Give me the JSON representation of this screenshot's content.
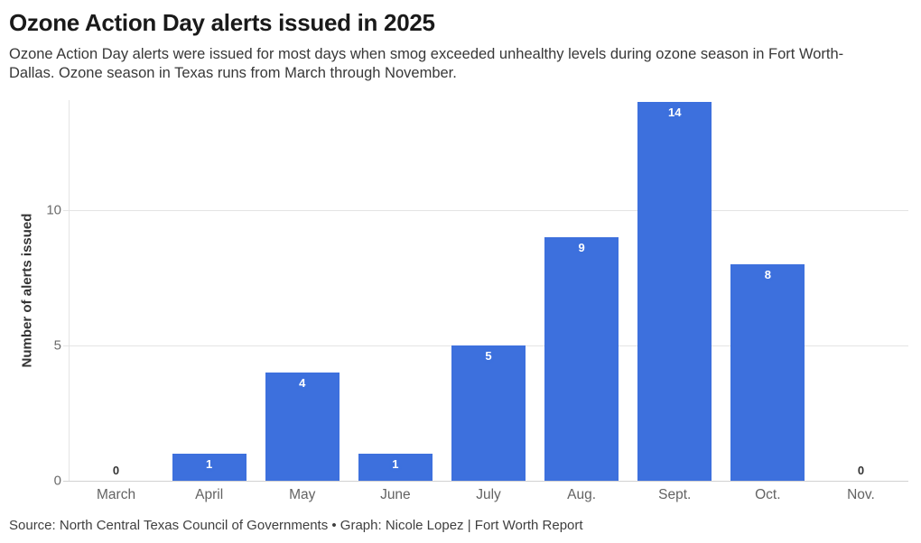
{
  "header": {
    "title": "Ozone Action Day alerts issued in 2025",
    "subtitle": "Ozone Action Day alerts were issued for most days when smog exceeded unhealthy levels during ozone season in Fort Worth-Dallas. Ozone season in Texas runs from March through November."
  },
  "footer": {
    "source": "Source: North Central Texas Council of Governments • Graph: Nicole Lopez | Fort Worth Report"
  },
  "chart_data": {
    "type": "bar",
    "title": "Ozone Action Day alerts issued in 2025",
    "categories": [
      "March",
      "April",
      "May",
      "June",
      "July",
      "Aug.",
      "Sept.",
      "Oct.",
      "Nov."
    ],
    "values": [
      0,
      1,
      4,
      1,
      5,
      9,
      14,
      8,
      0
    ],
    "xlabel": "",
    "ylabel": "Number of alerts issued",
    "ylim": [
      0,
      14
    ],
    "yticks": [
      0,
      5,
      10
    ],
    "grid": "horizontal",
    "legend": "none",
    "value_labels": true,
    "colors": {
      "bar": "#3d70dd",
      "value_label_text": "#ffffff",
      "value_label_halo": "#3d70dd",
      "zero_label": "#333333",
      "gridline": "#e4e4e4",
      "axis_text": "#6b6b6b"
    }
  }
}
